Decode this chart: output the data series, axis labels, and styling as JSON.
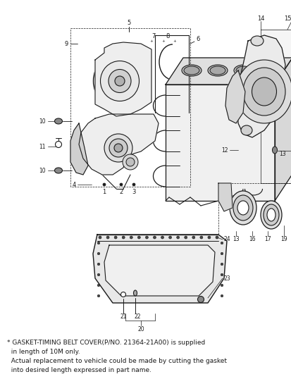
{
  "bg_color": "#ffffff",
  "line_color": "#1a1a1a",
  "footnote_line1": "* GASKET-TIMING BELT COVER(P/NO. 21364-21A00) is supplied",
  "footnote_line2": "  in length of 10M only.",
  "footnote_line3": "  Actual replacement to vehicle could be made by cutting the gasket",
  "footnote_line4": "  into desired length expressed in part name.",
  "fig_w": 4.14,
  "fig_h": 5.38,
  "dpi": 100
}
